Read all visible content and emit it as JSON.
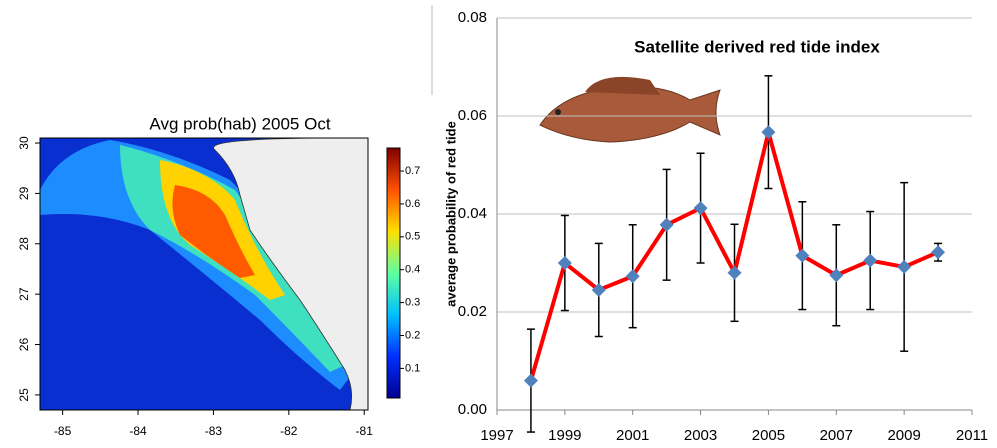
{
  "chart_data": [
    {
      "type": "heatmap",
      "title": "Avg prob(hab) 2005 Oct",
      "xlim": [
        -85.3,
        -80.95
      ],
      "xticks": [
        -85,
        -84,
        -83,
        -82,
        -81
      ],
      "ylim": [
        24.7,
        30.1
      ],
      "yticks": [
        25,
        26,
        27,
        28,
        29,
        30
      ],
      "colorbar_lim": [
        0.01,
        0.77
      ],
      "colorbar_ticks": [
        0.1,
        0.2,
        0.3,
        0.4,
        0.5,
        0.6,
        0.7
      ],
      "colormap": [
        "#00008f",
        "#0030ff",
        "#00c0ff",
        "#60ffa0",
        "#ffe000",
        "#ff5000",
        "#800000"
      ]
    },
    {
      "type": "line",
      "title": "Satellite derived red tide index",
      "y_label": "average probability of red tide",
      "x": [
        1998,
        1999,
        2000,
        2001,
        2002,
        2003,
        2004,
        2005,
        2006,
        2007,
        2008,
        2009,
        2010
      ],
      "series": [
        {
          "color": "#ff0000",
          "marker_color": "#4f81bd",
          "values": [
            0.006,
            0.03,
            0.0245,
            0.0273,
            0.0378,
            0.0412,
            0.028,
            0.0567,
            0.0315,
            0.0275,
            0.0305,
            0.0292,
            0.0322
          ],
          "errors": [
            0.0105,
            0.0097,
            0.0095,
            0.0105,
            0.0113,
            0.0112,
            0.0099,
            0.0115,
            0.011,
            0.0103,
            0.01,
            0.0172,
            0.0018
          ]
        }
      ],
      "xlim": [
        1997,
        2011
      ],
      "xticks": [
        1997,
        1999,
        2001,
        2003,
        2005,
        2007,
        2009,
        2011
      ],
      "ylim": [
        0,
        0.08
      ],
      "yticks": [
        {
          "value": 0,
          "label": "0.00"
        },
        {
          "value": 0.02,
          "label": "0.02"
        },
        {
          "value": 0.04,
          "label": "0.04"
        },
        {
          "value": 0.06,
          "label": "0.06"
        },
        {
          "value": 0.08,
          "label": "0.08"
        }
      ],
      "grid": true
    }
  ]
}
